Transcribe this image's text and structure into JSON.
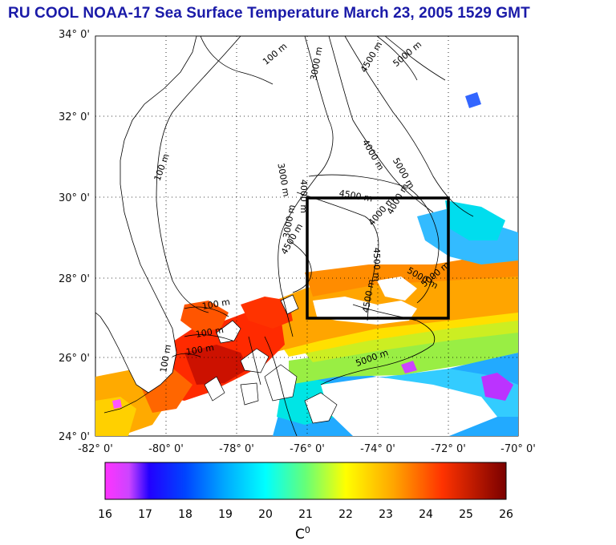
{
  "title": "RU COOL  NOAA-17 Sea Surface Temperature March 23, 2005 1529 GMT",
  "map": {
    "lat_labels": [
      "34° 0'",
      "32° 0'",
      "30° 0'",
      "28° 0'",
      "26° 0'",
      "24° 0'"
    ],
    "lon_labels": [
      "-82° 0'",
      "-80° 0'",
      "-78° 0'",
      "-76° 0'",
      "-74° 0'",
      "-72° 0'",
      "-70° 0'"
    ],
    "contour_labels": [
      {
        "text": "100 m",
        "rot": -40
      },
      {
        "text": "100 m",
        "rot": -70
      },
      {
        "text": "3000 m",
        "rot": -80
      },
      {
        "text": "4500 m",
        "rot": -60
      },
      {
        "text": "5000 m",
        "rot": -40
      },
      {
        "text": "3000 m",
        "rot": 80
      },
      {
        "text": "4000 m",
        "rot": 60
      },
      {
        "text": "5000 m",
        "rot": 60
      },
      {
        "text": "4000 m",
        "rot": 90
      },
      {
        "text": "3000 m",
        "rot": -80
      },
      {
        "text": "4500 m",
        "rot": -60
      },
      {
        "text": "4000 m",
        "rot": -50
      },
      {
        "text": "4500 m",
        "rot": 10
      },
      {
        "text": "4000 m",
        "rot": -60
      },
      {
        "text": "4500 m",
        "rot": 90
      },
      {
        "text": "5000 m",
        "rot": 30
      },
      {
        "text": "5000 m",
        "rot": -40
      },
      {
        "text": "4500 m",
        "rot": -80
      },
      {
        "text": "100 m",
        "rot": -10
      },
      {
        "text": "100 m",
        "rot": -10
      },
      {
        "text": "100 m",
        "rot": -80
      },
      {
        "text": "100 m",
        "rot": -10
      },
      {
        "text": "5000 m",
        "rot": -20
      }
    ],
    "box_region": {
      "lon_min": -76,
      "lon_max": -72,
      "lat_min": 27,
      "lat_max": 30
    },
    "box_color": "#000000"
  },
  "colorbar": {
    "ticks": [
      "16",
      "17",
      "18",
      "19",
      "20",
      "21",
      "22",
      "23",
      "24",
      "25",
      "26"
    ],
    "unit_label": "C",
    "unit_sup": "0",
    "colors": [
      "#ff33ff",
      "#0000ff",
      "#00aaff",
      "#00ffff",
      "#66ff66",
      "#ffff00",
      "#ffa500",
      "#ff3300",
      "#7a0000"
    ]
  }
}
